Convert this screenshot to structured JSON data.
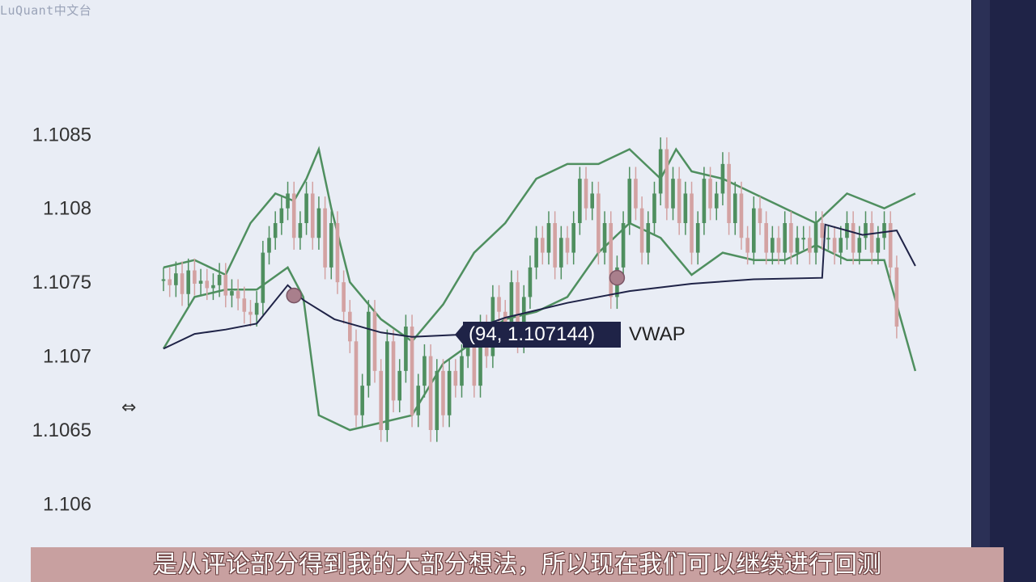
{
  "watermark": "LuQuant中文台",
  "subtitle": "是从评论部分得到我的大部分想法，所以现在我们可以继续进行回测",
  "tooltip": {
    "text": "(94, 1.107144)",
    "series": "VWAP"
  },
  "icons": {
    "resize": "horizontal-resize-icon"
  },
  "colors": {
    "background": "#e9edf5",
    "up_candle": "#4f8f5f",
    "down_candle": "#d3a2a2",
    "band": "#4f8f5f",
    "vwap": "#1f2347",
    "marker": "#a97f8c",
    "tooltip_bg": "#1f2347"
  },
  "chart_data": {
    "type": "candlestick",
    "yticks": [
      "1.1085",
      "1.108",
      "1.1075",
      "1.107",
      "1.1065",
      "1.106"
    ],
    "ylim": [
      1.1058,
      1.1093
    ],
    "xlim": [
      0,
      260
    ],
    "close": [
      1.10752,
      1.10748,
      1.10756,
      1.10742,
      1.10758,
      1.10749,
      1.10751,
      1.10746,
      1.10748,
      1.10755,
      1.10741,
      1.10744,
      1.10739,
      1.1073,
      1.10728,
      1.10736,
      1.1077,
      1.1078,
      1.1079,
      1.108,
      1.1081,
      1.1078,
      1.1079,
      1.1081,
      1.1078,
      1.108,
      1.1076,
      1.1079,
      1.1075,
      1.1073,
      1.1071,
      1.1066,
      1.1068,
      1.1073,
      1.1069,
      1.1065,
      1.1071,
      1.1067,
      1.1069,
      1.1072,
      1.1066,
      1.1068,
      1.107,
      1.1065,
      1.1069,
      1.1066,
      1.1069,
      1.1068,
      1.107,
      1.1071,
      1.1068,
      1.1072,
      1.107,
      1.1074,
      1.1073,
      1.1072,
      1.1075,
      1.1071,
      1.1074,
      1.1076,
      1.1078,
      1.1077,
      1.1079,
      1.1076,
      1.1078,
      1.1077,
      1.1079,
      1.1082,
      1.108,
      1.1081,
      1.1077,
      1.1079,
      1.1074,
      1.1076,
      1.1079,
      1.1082,
      1.108,
      1.1077,
      1.1079,
      1.1081,
      1.1084,
      1.108,
      1.1082,
      1.1079,
      1.1081,
      1.1077,
      1.1079,
      1.1082,
      1.108,
      1.1081,
      1.1083,
      1.1079,
      1.1081,
      1.1078,
      1.1077,
      1.108,
      1.1079,
      1.1077,
      1.1078,
      1.1077,
      1.1079,
      1.1077,
      1.1078,
      1.1078,
      1.1077,
      1.1079,
      1.1078,
      1.1078,
      1.1077,
      1.1078,
      1.1079,
      1.1077,
      1.1078,
      1.1079,
      1.1077,
      1.1078,
      1.1079,
      1.1076,
      1.1072
    ],
    "vwap": [
      [
        0,
        1.10705
      ],
      [
        10,
        1.10715
      ],
      [
        20,
        1.10718
      ],
      [
        30,
        1.10722
      ],
      [
        40,
        1.10748
      ],
      [
        45,
        1.10738
      ],
      [
        55,
        1.10725
      ],
      [
        70,
        1.10716
      ],
      [
        80,
        1.10713
      ],
      [
        94,
        1.107144
      ],
      [
        110,
        1.10726
      ],
      [
        130,
        1.10736
      ],
      [
        150,
        1.10744
      ],
      [
        170,
        1.10749
      ],
      [
        190,
        1.10752
      ],
      [
        212,
        1.10753
      ],
      [
        213,
        1.10789
      ],
      [
        225,
        1.10782
      ],
      [
        236,
        1.10785
      ],
      [
        242,
        1.10761
      ]
    ],
    "upper_band": [
      [
        0,
        1.1076
      ],
      [
        10,
        1.10765
      ],
      [
        20,
        1.10755
      ],
      [
        28,
        1.1079
      ],
      [
        36,
        1.1081
      ],
      [
        42,
        1.10805
      ],
      [
        46,
        1.1082
      ],
      [
        50,
        1.1084
      ],
      [
        54,
        1.108
      ],
      [
        60,
        1.1075
      ],
      [
        70,
        1.10725
      ],
      [
        80,
        1.1071
      ],
      [
        90,
        1.10735
      ],
      [
        100,
        1.1077
      ],
      [
        110,
        1.1079
      ],
      [
        120,
        1.1082
      ],
      [
        130,
        1.1083
      ],
      [
        140,
        1.1083
      ],
      [
        150,
        1.1084
      ],
      [
        160,
        1.1082
      ],
      [
        165,
        1.1084
      ],
      [
        170,
        1.10825
      ],
      [
        180,
        1.1082
      ],
      [
        190,
        1.1081
      ],
      [
        200,
        1.108
      ],
      [
        210,
        1.1079
      ],
      [
        220,
        1.1081
      ],
      [
        232,
        1.108
      ],
      [
        242,
        1.1081
      ]
    ],
    "lower_band": [
      [
        0,
        1.10705
      ],
      [
        10,
        1.1074
      ],
      [
        20,
        1.10745
      ],
      [
        30,
        1.10745
      ],
      [
        40,
        1.1076
      ],
      [
        45,
        1.1074
      ],
      [
        50,
        1.1066
      ],
      [
        60,
        1.1065
      ],
      [
        70,
        1.10655
      ],
      [
        80,
        1.1066
      ],
      [
        90,
        1.10695
      ],
      [
        100,
        1.1071
      ],
      [
        110,
        1.10725
      ],
      [
        120,
        1.1073
      ],
      [
        130,
        1.1074
      ],
      [
        140,
        1.1077
      ],
      [
        150,
        1.1079
      ],
      [
        160,
        1.1078
      ],
      [
        170,
        1.10755
      ],
      [
        180,
        1.1077
      ],
      [
        190,
        1.10765
      ],
      [
        200,
        1.10765
      ],
      [
        210,
        1.10775
      ],
      [
        220,
        1.10765
      ],
      [
        232,
        1.10765
      ],
      [
        242,
        1.1069
      ]
    ],
    "markers": [
      [
        42,
        1.10741
      ],
      [
        146,
        1.10753
      ]
    ]
  }
}
